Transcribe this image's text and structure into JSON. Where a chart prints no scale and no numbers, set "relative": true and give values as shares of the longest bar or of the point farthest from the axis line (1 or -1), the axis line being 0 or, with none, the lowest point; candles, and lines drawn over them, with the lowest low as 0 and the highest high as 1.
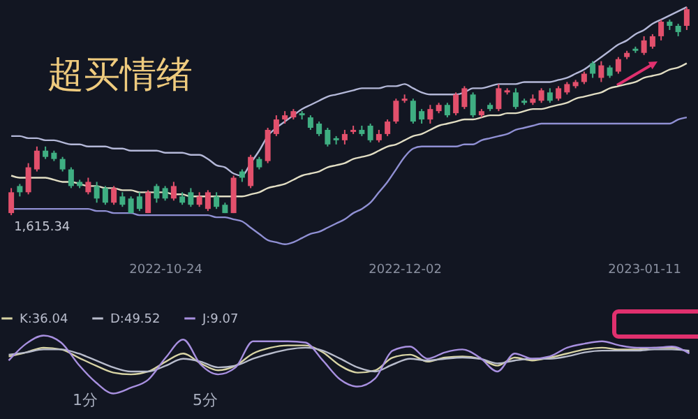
{
  "chart_data": [
    {
      "type": "candlestick",
      "title": "超买情绪",
      "relative": true,
      "categories": [
        null,
        null,
        null,
        null,
        null,
        null,
        null,
        null,
        null,
        null,
        null,
        null,
        null,
        null,
        null,
        null,
        null,
        null,
        "2022-10-24",
        null,
        null,
        null,
        null,
        null,
        null,
        null,
        null,
        null,
        null,
        null,
        null,
        null,
        null,
        null,
        null,
        null,
        null,
        null,
        null,
        null,
        null,
        null,
        null,
        null,
        null,
        null,
        "2022-12-02",
        null,
        null,
        null,
        null,
        null,
        null,
        null,
        null,
        null,
        null,
        null,
        null,
        null,
        null,
        null,
        null,
        null,
        null,
        null,
        null,
        null,
        null,
        null,
        null,
        null,
        null,
        null,
        "2023-01-11",
        null,
        null,
        null,
        null,
        null
      ],
      "ohlc": [
        [
          0.01,
          0.13,
          0,
          0.11
        ],
        [
          0.14,
          0.15,
          0.09,
          0.11
        ],
        [
          0.11,
          0.25,
          0.1,
          0.23
        ],
        [
          0.22,
          0.33,
          0.21,
          0.31
        ],
        [
          0.31,
          0.33,
          0.27,
          0.28
        ],
        [
          0.3,
          0.31,
          0.26,
          0.27
        ],
        [
          0.27,
          0.28,
          0.21,
          0.22
        ],
        [
          0.22,
          0.23,
          0.13,
          0.14
        ],
        [
          0.16,
          0.17,
          0.13,
          0.14
        ],
        [
          0.11,
          0.18,
          0.1,
          0.16
        ],
        [
          0.14,
          0.16,
          0.06,
          0.08
        ],
        [
          0.13,
          0.14,
          0.05,
          0.06
        ],
        [
          0.06,
          0.14,
          0.05,
          0.13
        ],
        [
          0.09,
          0.11,
          0.04,
          0.05
        ],
        [
          0.08,
          0.09,
          0.01,
          0.01
        ],
        [
          0.09,
          0.11,
          0.02,
          0.03
        ],
        [
          0.01,
          0.12,
          0.01,
          0.11
        ],
        [
          0.14,
          0.15,
          0.06,
          0.08
        ],
        [
          0.13,
          0.14,
          0.07,
          0.08
        ],
        [
          0.08,
          0.16,
          0.07,
          0.14
        ],
        [
          0.09,
          0.11,
          0.05,
          0.06
        ],
        [
          0.11,
          0.13,
          0.04,
          0.05
        ],
        [
          0.05,
          0.11,
          0.04,
          0.09
        ],
        [
          0.03,
          0.12,
          0.02,
          0.11
        ],
        [
          0.09,
          0.11,
          0.03,
          0.04
        ],
        [
          0.05,
          0.06,
          0.01,
          0.01
        ],
        [
          0.01,
          0.19,
          0.01,
          0.18
        ],
        [
          0.21,
          0.22,
          0.16,
          0.18
        ],
        [
          0.14,
          0.29,
          0.13,
          0.28
        ],
        [
          0.27,
          0.28,
          0.22,
          0.23
        ],
        [
          0.26,
          0.42,
          0.25,
          0.41
        ],
        [
          0.39,
          0.48,
          0.38,
          0.46
        ],
        [
          0.46,
          0.5,
          0.44,
          0.48
        ],
        [
          0.47,
          0.51,
          0.46,
          0.5
        ],
        [
          0.49,
          0.5,
          0.46,
          0.48
        ],
        [
          0.47,
          0.48,
          0.41,
          0.42
        ],
        [
          0.44,
          0.45,
          0.38,
          0.39
        ],
        [
          0.41,
          0.42,
          0.33,
          0.34
        ],
        [
          0.37,
          0.38,
          0.34,
          0.36
        ],
        [
          0.36,
          0.41,
          0.34,
          0.39
        ],
        [
          0.4,
          0.43,
          0.39,
          0.41
        ],
        [
          0.41,
          0.43,
          0.38,
          0.39
        ],
        [
          0.43,
          0.44,
          0.35,
          0.36
        ],
        [
          0.36,
          0.41,
          0.35,
          0.39
        ],
        [
          0.39,
          0.46,
          0.38,
          0.45
        ],
        [
          0.45,
          0.56,
          0.44,
          0.55
        ],
        [
          0.55,
          0.58,
          0.54,
          0.56
        ],
        [
          0.55,
          0.56,
          0.44,
          0.45
        ],
        [
          0.5,
          0.51,
          0.44,
          0.46
        ],
        [
          0.46,
          0.53,
          0.44,
          0.51
        ],
        [
          0.5,
          0.54,
          0.49,
          0.53
        ],
        [
          0.53,
          0.54,
          0.47,
          0.48
        ],
        [
          0.49,
          0.59,
          0.48,
          0.58
        ],
        [
          0.52,
          0.62,
          0.51,
          0.61
        ],
        [
          0.58,
          0.59,
          0.47,
          0.48
        ],
        [
          0.48,
          0.51,
          0.47,
          0.5
        ],
        [
          0.53,
          0.54,
          0.5,
          0.51
        ],
        [
          0.51,
          0.63,
          0.5,
          0.61
        ],
        [
          0.59,
          0.61,
          0.58,
          0.6
        ],
        [
          0.59,
          0.61,
          0.51,
          0.52
        ],
        [
          0.55,
          0.56,
          0.53,
          0.54
        ],
        [
          0.54,
          0.58,
          0.53,
          0.56
        ],
        [
          0.55,
          0.61,
          0.54,
          0.6
        ],
        [
          0.59,
          0.61,
          0.54,
          0.55
        ],
        [
          0.56,
          0.62,
          0.55,
          0.61
        ],
        [
          0.59,
          0.64,
          0.58,
          0.63
        ],
        [
          0.62,
          0.65,
          0.61,
          0.64
        ],
        [
          0.64,
          0.69,
          0.63,
          0.68
        ],
        [
          0.73,
          0.74,
          0.66,
          0.68
        ],
        [
          0.66,
          0.74,
          0.64,
          0.72
        ],
        [
          0.71,
          0.72,
          0.66,
          0.67
        ],
        [
          0.69,
          0.76,
          0.68,
          0.75
        ],
        [
          0.76,
          0.79,
          0.75,
          0.78
        ],
        [
          0.8,
          0.81,
          0.78,
          0.79
        ],
        [
          0.78,
          0.86,
          0.77,
          0.84
        ],
        [
          0.81,
          0.87,
          0.8,
          0.86
        ],
        [
          0.86,
          0.94,
          0.84,
          0.93
        ],
        [
          0.93,
          0.94,
          0.89,
          0.91
        ],
        [
          0.91,
          0.92,
          0.86,
          0.88
        ],
        [
          0.91,
          1,
          0.89,
          0.99
        ]
      ],
      "series": [
        {
          "type": "line",
          "color": "#b4b8d8",
          "values": [
            0.38,
            0.38,
            0.37,
            0.37,
            0.36,
            0.36,
            0.35,
            0.34,
            0.34,
            0.33,
            0.33,
            0.33,
            0.32,
            0.32,
            0.31,
            0.31,
            0.31,
            0.31,
            0.3,
            0.3,
            0.3,
            0.29,
            0.29,
            0.27,
            0.24,
            0.23,
            0.2,
            0.19,
            0.25,
            0.31,
            0.38,
            0.42,
            0.45,
            0.48,
            0.51,
            0.53,
            0.55,
            0.57,
            0.58,
            0.59,
            0.6,
            0.61,
            0.61,
            0.61,
            0.62,
            0.62,
            0.63,
            0.61,
            0.59,
            0.58,
            0.58,
            0.58,
            0.58,
            0.59,
            0.61,
            0.61,
            0.62,
            0.63,
            0.63,
            0.63,
            0.64,
            0.64,
            0.64,
            0.64,
            0.65,
            0.66,
            0.68,
            0.7,
            0.73,
            0.76,
            0.79,
            0.82,
            0.84,
            0.87,
            0.89,
            0.92,
            0.94,
            0.96,
            0.98,
            1
          ]
        },
        {
          "type": "line",
          "color": "#e2dec4",
          "values": [
            0.19,
            0.18,
            0.18,
            0.18,
            0.18,
            0.17,
            0.16,
            0.16,
            0.15,
            0.14,
            0.14,
            0.13,
            0.13,
            0.12,
            0.12,
            0.11,
            0.11,
            0.11,
            0.11,
            0.1,
            0.1,
            0.09,
            0.09,
            0.09,
            0.09,
            0.09,
            0.09,
            0.09,
            0.1,
            0.11,
            0.13,
            0.14,
            0.15,
            0.17,
            0.19,
            0.2,
            0.21,
            0.23,
            0.24,
            0.25,
            0.27,
            0.28,
            0.29,
            0.31,
            0.33,
            0.34,
            0.36,
            0.38,
            0.39,
            0.41,
            0.43,
            0.44,
            0.45,
            0.46,
            0.46,
            0.47,
            0.48,
            0.48,
            0.49,
            0.49,
            0.5,
            0.51,
            0.51,
            0.52,
            0.53,
            0.54,
            0.56,
            0.57,
            0.58,
            0.59,
            0.61,
            0.62,
            0.63,
            0.64,
            0.66,
            0.67,
            0.68,
            0.7,
            0.71,
            0.73
          ]
        },
        {
          "type": "line",
          "color": "#9090d4",
          "values": [
            0.03,
            0.03,
            0.03,
            0.03,
            0.03,
            0.03,
            0.03,
            0.03,
            0.03,
            0.03,
            0.02,
            0.02,
            0.01,
            0.01,
            0.01,
            0,
            0,
            0,
            0,
            0,
            0,
            0,
            0,
            0,
            -0.01,
            -0.01,
            -0.02,
            -0.03,
            -0.06,
            -0.09,
            -0.12,
            -0.13,
            -0.14,
            -0.13,
            -0.11,
            -0.09,
            -0.08,
            -0.06,
            -0.04,
            -0.02,
            0.01,
            0.03,
            0.06,
            0.11,
            0.16,
            0.22,
            0.28,
            0.32,
            0.33,
            0.33,
            0.33,
            0.33,
            0.33,
            0.34,
            0.34,
            0.36,
            0.37,
            0.38,
            0.39,
            0.41,
            0.42,
            0.43,
            0.44,
            0.44,
            0.44,
            0.44,
            0.44,
            0.44,
            0.44,
            0.44,
            0.44,
            0.44,
            0.44,
            0.44,
            0.44,
            0.44,
            0.44,
            0.44,
            0.46,
            0.47
          ]
        }
      ],
      "annotations": [
        {
          "text": "1,615.34",
          "y": 0
        }
      ]
    },
    {
      "type": "line",
      "relative": true,
      "legend": "top left",
      "categories": [
        null,
        null,
        null,
        null,
        null,
        null,
        null,
        null,
        null,
        null,
        null,
        null,
        null,
        null,
        null,
        null,
        null,
        null,
        null,
        null,
        null,
        null,
        null,
        null,
        null,
        null,
        null,
        null,
        null,
        null,
        null,
        null,
        null,
        null,
        null,
        null,
        null,
        null,
        null,
        null
      ],
      "series": [
        {
          "name": "K:36.04",
          "color": "#d8d4a4",
          "values": [
            0.64,
            0.71,
            0.79,
            0.76,
            0.62,
            0.48,
            0.36,
            0.33,
            0.38,
            0.55,
            0.69,
            0.52,
            0.4,
            0.48,
            0.69,
            0.79,
            0.83,
            0.83,
            0.71,
            0.48,
            0.36,
            0.4,
            0.62,
            0.67,
            0.55,
            0.62,
            0.64,
            0.6,
            0.48,
            0.62,
            0.57,
            0.62,
            0.69,
            0.76,
            0.79,
            0.76,
            0.76,
            0.79,
            0.79,
            0.71
          ]
        },
        {
          "name": "D:49.52",
          "color": "#b8bccc",
          "values": [
            0.67,
            0.71,
            0.76,
            0.76,
            0.69,
            0.57,
            0.45,
            0.38,
            0.38,
            0.48,
            0.6,
            0.55,
            0.45,
            0.48,
            0.6,
            0.69,
            0.76,
            0.79,
            0.74,
            0.6,
            0.45,
            0.38,
            0.5,
            0.6,
            0.57,
            0.6,
            0.62,
            0.6,
            0.52,
            0.57,
            0.6,
            0.6,
            0.64,
            0.71,
            0.74,
            0.74,
            0.74,
            0.76,
            0.76,
            0.74
          ]
        },
        {
          "name": "J:9.07",
          "color": "#a890e0",
          "values": [
            0.57,
            0.86,
            1,
            0.88,
            0.5,
            0.19,
            0,
            0.1,
            0.24,
            0.62,
            0.93,
            0.5,
            0.33,
            0.45,
            0.9,
            0.9,
            0.9,
            0.88,
            0.57,
            0.24,
            0.12,
            0.26,
            0.74,
            0.81,
            0.6,
            0.71,
            0.76,
            0.62,
            0.38,
            0.69,
            0.6,
            0.64,
            0.79,
            0.86,
            0.9,
            0.83,
            0.79,
            0.79,
            0.81,
            0.69
          ]
        }
      ],
      "annotations": [
        "1分",
        "5分"
      ]
    }
  ]
}
